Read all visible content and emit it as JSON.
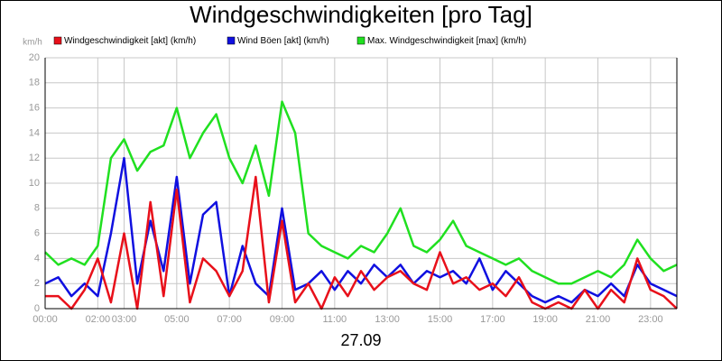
{
  "chart_data": {
    "type": "line",
    "title": "Windgeschwindigkeiten [pro Tag]",
    "y_label": "km/h",
    "x_label": "27.09",
    "x": [
      0,
      0.5,
      1,
      1.5,
      2,
      2.5,
      3,
      3.5,
      4,
      4.5,
      5,
      5.5,
      6,
      6.5,
      7,
      7.5,
      8,
      8.5,
      9,
      9.5,
      10,
      10.5,
      11,
      11.5,
      12,
      12.5,
      13,
      13.5,
      14,
      14.5,
      15,
      15.5,
      16,
      16.5,
      17,
      17.5,
      18,
      18.5,
      19,
      19.5,
      20,
      20.5,
      21,
      21.5,
      22,
      22.5,
      23,
      23.5,
      24
    ],
    "series": [
      {
        "name": "Windgeschwindigkeit [akt] (km/h)",
        "color": "#e8101a",
        "values": [
          1,
          1,
          0,
          1.5,
          4,
          0.5,
          6,
          0,
          8.5,
          1,
          9.5,
          0.5,
          4,
          3,
          1,
          3,
          10.5,
          0.5,
          7,
          0.5,
          2,
          0,
          2.5,
          1,
          3,
          1.5,
          2.5,
          3,
          2,
          1.5,
          4.5,
          2,
          2.5,
          1.5,
          2,
          1,
          2.5,
          0.5,
          0,
          0.5,
          0,
          1.5,
          0,
          1.5,
          0.5,
          4,
          1.5,
          1,
          0
        ]
      },
      {
        "name": "Wind Böen [akt] (km/h)",
        "color": "#1010e0",
        "values": [
          2,
          2.5,
          1,
          2,
          1,
          6,
          12,
          2,
          7,
          3,
          10.5,
          2,
          7.5,
          8.5,
          1,
          5,
          2,
          1,
          8,
          1.5,
          2,
          3,
          1.5,
          3,
          2,
          3.5,
          2.5,
          3.5,
          2,
          3,
          2.5,
          3,
          2,
          4,
          1.5,
          3,
          2,
          1,
          0.5,
          1,
          0.5,
          1.5,
          1,
          2,
          1,
          3.5,
          2,
          1.5,
          1
        ]
      },
      {
        "name": "Max. Windgeschwindigkeit [max] (km/h)",
        "color": "#20e020",
        "values": [
          4.5,
          3.5,
          4,
          3.5,
          5,
          12,
          13.5,
          11,
          12.5,
          13,
          16,
          12,
          14,
          15.5,
          12,
          10,
          13,
          9,
          16.5,
          14,
          6,
          5,
          4.5,
          4,
          5,
          4.5,
          6,
          8,
          5,
          4.5,
          5.5,
          7,
          5,
          4.5,
          4,
          3.5,
          4,
          3,
          2.5,
          2,
          2,
          2.5,
          3,
          2.5,
          3.5,
          5.5,
          4,
          3,
          3.5
        ]
      }
    ],
    "xlim": [
      0,
      24
    ],
    "xticks": [
      {
        "value": 0,
        "label": "00:00"
      },
      {
        "value": 2,
        "label": "02:00"
      },
      {
        "value": 3,
        "label": "03:00"
      },
      {
        "value": 5,
        "label": "05:00"
      },
      {
        "value": 7,
        "label": "07:00"
      },
      {
        "value": 9,
        "label": "09:00"
      },
      {
        "value": 11,
        "label": "11:00"
      },
      {
        "value": 13,
        "label": "13:00"
      },
      {
        "value": 15,
        "label": "15:00"
      },
      {
        "value": 17,
        "label": "17:00"
      },
      {
        "value": 19,
        "label": "19:00"
      },
      {
        "value": 21,
        "label": "21:00"
      },
      {
        "value": 23,
        "label": "23:00"
      }
    ],
    "ylim": [
      0,
      20
    ],
    "yticks": [
      0,
      2,
      4,
      6,
      8,
      10,
      12,
      14,
      16,
      18,
      20
    ],
    "grid": true
  }
}
